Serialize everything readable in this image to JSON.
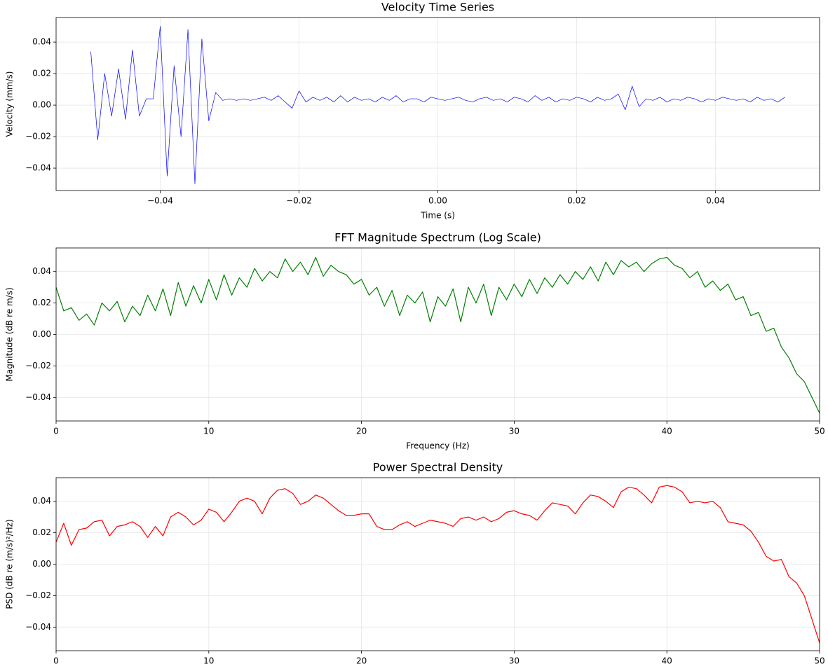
{
  "chart_data": [
    {
      "type": "line",
      "title": "Velocity Time Series",
      "xlabel": "Time (s)",
      "ylabel": "Velocity (mm/s)",
      "grid": true,
      "xlim": [
        -0.055,
        0.055
      ],
      "ylim": [
        -0.0542,
        0.0556
      ],
      "xticks": [
        {
          "value": -0.04,
          "label": "−0.04"
        },
        {
          "value": -0.02,
          "label": "−0.02"
        },
        {
          "value": 0,
          "label": "0.00"
        },
        {
          "value": 0.02,
          "label": "0.02"
        },
        {
          "value": 0.04,
          "label": "0.04"
        }
      ],
      "yticks": [
        {
          "value": -0.04,
          "label": "−0.04"
        },
        {
          "value": -0.02,
          "label": "−0.02"
        },
        {
          "value": 0,
          "label": "0.00"
        },
        {
          "value": 0.02,
          "label": "0.02"
        },
        {
          "value": 0.04,
          "label": "0.04"
        }
      ],
      "x": [
        -0.05,
        -0.049,
        -0.048,
        -0.047,
        -0.046,
        -0.045,
        -0.044,
        -0.043,
        -0.042,
        -0.041,
        -0.04,
        -0.039,
        -0.038,
        -0.037,
        -0.036,
        -0.035,
        -0.034,
        -0.033,
        -0.032,
        -0.031,
        -0.03,
        -0.029,
        -0.028,
        -0.027,
        -0.026,
        -0.025,
        -0.024,
        -0.023,
        -0.022,
        -0.021,
        -0.02,
        -0.019,
        -0.018,
        -0.017,
        -0.016,
        -0.015,
        -0.014,
        -0.013,
        -0.012,
        -0.011,
        -0.01,
        -0.009,
        -0.008,
        -0.007,
        -0.006,
        -0.005,
        -0.004,
        -0.003,
        -0.002,
        -0.001,
        0.0,
        0.001,
        0.002,
        0.003,
        0.004,
        0.005,
        0.006,
        0.007,
        0.008,
        0.009,
        0.01,
        0.011,
        0.012,
        0.013,
        0.014,
        0.015,
        0.016,
        0.017,
        0.018,
        0.019,
        0.02,
        0.021,
        0.022,
        0.023,
        0.024,
        0.025,
        0.026,
        0.027,
        0.028,
        0.029,
        0.03,
        0.031,
        0.032,
        0.033,
        0.034,
        0.035,
        0.036,
        0.037,
        0.038,
        0.039,
        0.04,
        0.041,
        0.042,
        0.043,
        0.044,
        0.045,
        0.046,
        0.047,
        0.048,
        0.049,
        0.05
      ],
      "series": [
        {
          "color": "#0000ff",
          "values": [
            0.034,
            -0.022,
            0.02,
            -0.007,
            0.023,
            -0.009,
            0.035,
            -0.007,
            0.004,
            0.004,
            0.05,
            -0.045,
            0.025,
            -0.02,
            0.048,
            -0.05,
            0.042,
            -0.01,
            0.008,
            0.003,
            0.004,
            0.003,
            0.004,
            0.003,
            0.004,
            0.005,
            0.003,
            0.006,
            0.002,
            -0.002,
            0.009,
            0.002,
            0.005,
            0.003,
            0.005,
            0.002,
            0.006,
            0.002,
            0.005,
            0.003,
            0.004,
            0.002,
            0.005,
            0.003,
            0.006,
            0.002,
            0.004,
            0.004,
            0.002,
            0.005,
            0.004,
            0.003,
            0.004,
            0.005,
            0.003,
            0.002,
            0.004,
            0.005,
            0.003,
            0.004,
            0.002,
            0.005,
            0.004,
            0.002,
            0.006,
            0.003,
            0.005,
            0.002,
            0.004,
            0.003,
            0.005,
            0.004,
            0.002,
            0.005,
            0.003,
            0.004,
            0.007,
            -0.003,
            0.012,
            -0.001,
            0.004,
            0.003,
            0.005,
            0.002,
            0.004,
            0.003,
            0.005,
            0.004,
            0.002,
            0.004,
            0.003,
            0.005,
            0.004,
            0.003,
            0.004,
            0.002,
            0.005,
            0.003,
            0.004,
            0.002,
            0.005
          ]
        }
      ]
    },
    {
      "type": "line",
      "title": "FFT Magnitude Spectrum (Log Scale)",
      "xlabel": "Frequency (Hz)",
      "ylabel": "Magnitude (dB re m/s)",
      "grid": true,
      "xlim": [
        0,
        50
      ],
      "ylim": [
        -0.055,
        0.055
      ],
      "xticks": [
        0,
        10,
        20,
        30,
        40,
        50
      ],
      "yticks": [
        {
          "value": -0.04,
          "label": "−0.04"
        },
        {
          "value": -0.02,
          "label": "−0.02"
        },
        {
          "value": 0,
          "label": "0.00"
        },
        {
          "value": 0.02,
          "label": "0.02"
        },
        {
          "value": 0.04,
          "label": "0.04"
        }
      ],
      "x": [
        0,
        0.5,
        1,
        1.5,
        2,
        2.5,
        3,
        3.5,
        4,
        4.5,
        5,
        5.5,
        6,
        6.5,
        7,
        7.5,
        8,
        8.5,
        9,
        9.5,
        10,
        10.5,
        11,
        11.5,
        12,
        12.5,
        13,
        13.5,
        14,
        14.5,
        15,
        15.5,
        16,
        16.5,
        17,
        17.5,
        18,
        18.5,
        19,
        19.5,
        20,
        20.5,
        21,
        21.5,
        22,
        22.5,
        23,
        23.5,
        24,
        24.5,
        25,
        25.5,
        26,
        26.5,
        27,
        27.5,
        28,
        28.5,
        29,
        29.5,
        30,
        30.5,
        31,
        31.5,
        32,
        32.5,
        33,
        33.5,
        34,
        34.5,
        35,
        35.5,
        36,
        36.5,
        37,
        37.5,
        38,
        38.5,
        39,
        39.5,
        40,
        40.5,
        41,
        41.5,
        42,
        42.5,
        43,
        43.5,
        44,
        44.5,
        45,
        45.5,
        46,
        46.5,
        47,
        47.5,
        48,
        48.5,
        49,
        49.5,
        50
      ],
      "series": [
        {
          "color": "#008000",
          "values": [
            0.03,
            0.015,
            0.017,
            0.009,
            0.013,
            0.006,
            0.02,
            0.015,
            0.021,
            0.008,
            0.018,
            0.012,
            0.025,
            0.015,
            0.029,
            0.012,
            0.033,
            0.018,
            0.031,
            0.02,
            0.035,
            0.022,
            0.038,
            0.025,
            0.036,
            0.03,
            0.042,
            0.034,
            0.04,
            0.036,
            0.048,
            0.04,
            0.046,
            0.038,
            0.049,
            0.037,
            0.044,
            0.04,
            0.038,
            0.032,
            0.035,
            0.025,
            0.03,
            0.018,
            0.028,
            0.012,
            0.025,
            0.02,
            0.027,
            0.008,
            0.024,
            0.018,
            0.029,
            0.008,
            0.03,
            0.02,
            0.032,
            0.012,
            0.03,
            0.022,
            0.032,
            0.024,
            0.035,
            0.026,
            0.036,
            0.03,
            0.038,
            0.032,
            0.04,
            0.035,
            0.043,
            0.034,
            0.046,
            0.038,
            0.047,
            0.043,
            0.046,
            0.04,
            0.045,
            0.048,
            0.049,
            0.044,
            0.042,
            0.036,
            0.04,
            0.03,
            0.034,
            0.028,
            0.032,
            0.022,
            0.024,
            0.012,
            0.014,
            0.002,
            0.004,
            -0.008,
            -0.015,
            -0.025,
            -0.03,
            -0.04,
            -0.05
          ]
        }
      ]
    },
    {
      "type": "line",
      "title": "Power Spectral Density",
      "ylabel": "PSD (dB re (m/s)²/Hz)",
      "grid": true,
      "xlim": [
        0,
        50
      ],
      "ylim": [
        -0.055,
        0.055
      ],
      "xticks": [
        0,
        10,
        20,
        30,
        40,
        50
      ],
      "yticks": [
        {
          "value": -0.04,
          "label": "−0.04"
        },
        {
          "value": -0.02,
          "label": "−0.02"
        },
        {
          "value": 0,
          "label": "0.00"
        },
        {
          "value": 0.02,
          "label": "0.02"
        },
        {
          "value": 0.04,
          "label": "0.04"
        }
      ],
      "x": [
        0,
        0.5,
        1,
        1.5,
        2,
        2.5,
        3,
        3.5,
        4,
        4.5,
        5,
        5.5,
        6,
        6.5,
        7,
        7.5,
        8,
        8.5,
        9,
        9.5,
        10,
        10.5,
        11,
        11.5,
        12,
        12.5,
        13,
        13.5,
        14,
        14.5,
        15,
        15.5,
        16,
        16.5,
        17,
        17.5,
        18,
        18.5,
        19,
        19.5,
        20,
        20.5,
        21,
        21.5,
        22,
        22.5,
        23,
        23.5,
        24,
        24.5,
        25,
        25.5,
        26,
        26.5,
        27,
        27.5,
        28,
        28.5,
        29,
        29.5,
        30,
        30.5,
        31,
        31.5,
        32,
        32.5,
        33,
        33.5,
        34,
        34.5,
        35,
        35.5,
        36,
        36.5,
        37,
        37.5,
        38,
        38.5,
        39,
        39.5,
        40,
        40.5,
        41,
        41.5,
        42,
        42.5,
        43,
        43.5,
        44,
        44.5,
        45,
        45.5,
        46,
        46.5,
        47,
        47.5,
        48,
        48.5,
        49,
        49.5,
        50
      ],
      "series": [
        {
          "color": "#ff0000",
          "values": [
            0.014,
            0.026,
            0.012,
            0.022,
            0.023,
            0.027,
            0.028,
            0.018,
            0.024,
            0.025,
            0.027,
            0.024,
            0.017,
            0.024,
            0.018,
            0.03,
            0.033,
            0.03,
            0.025,
            0.028,
            0.035,
            0.033,
            0.027,
            0.033,
            0.04,
            0.042,
            0.04,
            0.032,
            0.042,
            0.047,
            0.048,
            0.045,
            0.038,
            0.04,
            0.044,
            0.042,
            0.038,
            0.034,
            0.031,
            0.031,
            0.032,
            0.032,
            0.024,
            0.022,
            0.022,
            0.025,
            0.027,
            0.024,
            0.026,
            0.028,
            0.027,
            0.026,
            0.024,
            0.029,
            0.03,
            0.028,
            0.03,
            0.027,
            0.029,
            0.033,
            0.034,
            0.032,
            0.031,
            0.028,
            0.034,
            0.039,
            0.038,
            0.037,
            0.032,
            0.039,
            0.044,
            0.043,
            0.04,
            0.036,
            0.046,
            0.049,
            0.048,
            0.044,
            0.039,
            0.049,
            0.05,
            0.049,
            0.046,
            0.039,
            0.04,
            0.039,
            0.04,
            0.036,
            0.027,
            0.026,
            0.025,
            0.021,
            0.014,
            0.005,
            0.002,
            0.003,
            -0.008,
            -0.012,
            -0.02,
            -0.035,
            -0.05
          ]
        }
      ]
    }
  ]
}
